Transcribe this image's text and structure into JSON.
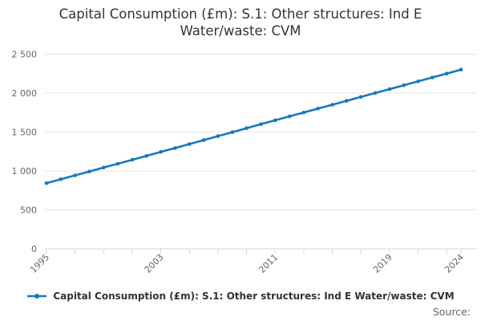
{
  "title": {
    "line1": "Capital Consumption (£m): S.1: Other structures: Ind E",
    "line2": "Water/waste: CVM"
  },
  "legend": {
    "items": [
      {
        "label": "Capital Consumption (£m): S.1: Other structures: Ind E Water/waste: CVM"
      }
    ],
    "position": "bottom"
  },
  "source": {
    "label": "Source:"
  },
  "colors": {
    "series_line": "#1679bd",
    "grid_line": "#e6e6e6",
    "axis_line": "#ccd6eb",
    "tick_label": "#666666",
    "title_text": "#333333",
    "legend_text": "#333333",
    "source_text": "#666666"
  },
  "chart_data": {
    "type": "line",
    "title": "Capital Consumption (£m): S.1: Other structures: Ind E Water/waste: CVM",
    "x": [
      1995,
      1996,
      1997,
      1998,
      1999,
      2000,
      2001,
      2002,
      2003,
      2004,
      2005,
      2006,
      2007,
      2008,
      2009,
      2010,
      2011,
      2012,
      2013,
      2014,
      2015,
      2016,
      2017,
      2018,
      2019,
      2020,
      2021,
      2022,
      2023,
      2024
    ],
    "series": [
      {
        "name": "Capital Consumption (£m): S.1: Other structures: Ind E Water/waste: CVM",
        "color": "#1679bd",
        "marker": "circle",
        "values": [
          843,
          893,
          943,
          993,
          1043,
          1093,
          1143,
          1193,
          1244,
          1294,
          1345,
          1396,
          1447,
          1498,
          1549,
          1600,
          1650,
          1701,
          1751,
          1801,
          1851,
          1901,
          1951,
          2001,
          2051,
          2101,
          2151,
          2201,
          2251,
          2301
        ]
      }
    ],
    "xlabel": "",
    "ylabel": "",
    "ylim": [
      0,
      2500
    ],
    "yticks": [
      0,
      500,
      1000,
      1500,
      2000,
      2500
    ],
    "ytick_labels": [
      "0",
      "500",
      "1 000",
      "1 500",
      "2 000",
      "2 500"
    ],
    "xtick_labeled_years": [
      "1995",
      "2003",
      "2011",
      "2019",
      "2024"
    ],
    "xtick_minor_interval": 2,
    "x_label_rotation_deg": -45,
    "grid": "horizontal",
    "legend_position": "bottom"
  }
}
